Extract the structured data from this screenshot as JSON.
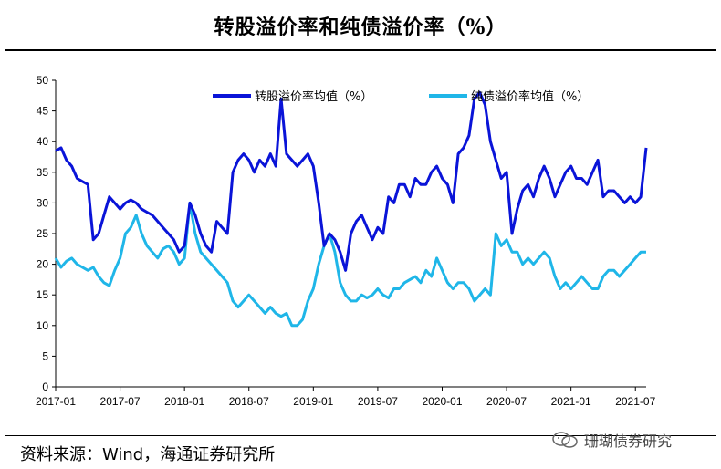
{
  "page_title": "转股溢价率和纯债溢价率（%）",
  "source_note": "资料来源：Wind，海通证券研究所",
  "watermark": "珊瑚债券研究",
  "colors": {
    "series_convert": "#0a14d8",
    "series_bond": "#1fb6e8",
    "axis": "#000000"
  },
  "chart_data": {
    "type": "line",
    "title": "转股溢价率和纯债溢价率（%）",
    "xlabel": "",
    "ylabel": "",
    "ylim": [
      0,
      50
    ],
    "yticks": [
      0,
      5,
      10,
      15,
      20,
      25,
      30,
      35,
      40,
      45,
      50
    ],
    "xlim": [
      0,
      55
    ],
    "xtick_positions": [
      0,
      6,
      12,
      18,
      24,
      30,
      36,
      42,
      48,
      54
    ],
    "xtick_labels": [
      "2017-01",
      "2017-07",
      "2018-01",
      "2018-07",
      "2019-01",
      "2019-07",
      "2020-01",
      "2020-07",
      "2021-01",
      "2021-07"
    ],
    "legend_position": "top",
    "series": [
      {
        "name": "转股溢价率均值（%）",
        "x": [
          0,
          0.5,
          1,
          1.5,
          2,
          2.5,
          3,
          3.5,
          4,
          4.5,
          5,
          5.5,
          6,
          6.5,
          7,
          7.5,
          8,
          8.5,
          9,
          9.5,
          10,
          10.5,
          11,
          11.5,
          12,
          12.5,
          13,
          13.5,
          14,
          14.5,
          15,
          15.5,
          16,
          16.5,
          17,
          17.5,
          18,
          18.5,
          19,
          19.5,
          20,
          20.5,
          21,
          21.5,
          22,
          22.5,
          23,
          23.5,
          24,
          24.5,
          25,
          25.5,
          26,
          26.5,
          27,
          27.5,
          28,
          28.5,
          29,
          29.5,
          30,
          30.5,
          31,
          31.5,
          32,
          32.5,
          33,
          33.5,
          34,
          34.5,
          35,
          35.5,
          36,
          36.5,
          37,
          37.5,
          38,
          38.5,
          39,
          39.5,
          40,
          40.5,
          41,
          41.5,
          42,
          42.5,
          43,
          43.5,
          44,
          44.5,
          45,
          45.5,
          46,
          46.5,
          47,
          47.5,
          48,
          48.5,
          49,
          49.5,
          50,
          50.5,
          51,
          51.5,
          52,
          52.5,
          53,
          53.5,
          54,
          54.5,
          55
        ],
        "values": [
          38.5,
          39,
          37,
          36,
          34,
          33.5,
          33,
          24,
          25,
          28,
          31,
          30,
          29,
          30,
          30.5,
          30,
          29,
          28.5,
          28,
          27,
          26,
          25,
          24,
          22,
          23,
          30,
          28,
          25,
          23,
          22,
          27,
          26,
          25,
          35,
          37,
          38,
          37,
          35,
          37,
          36,
          38,
          36,
          47,
          38,
          37,
          36,
          37,
          38,
          36,
          30,
          23,
          25,
          24,
          22,
          19,
          25,
          27,
          28,
          26,
          24,
          26,
          25,
          31,
          30,
          33,
          33,
          31,
          34,
          33,
          33,
          35,
          36,
          34,
          33,
          30,
          38,
          39,
          41,
          47,
          48,
          46,
          40,
          37,
          34,
          35,
          25,
          29,
          32,
          33,
          31,
          34,
          36,
          34,
          31,
          33,
          35,
          36,
          34,
          34,
          33,
          35,
          37,
          31,
          32,
          32,
          31,
          30,
          31,
          30,
          31,
          39
        ]
      },
      {
        "name": "纯债溢价率均值（%）",
        "x": [
          0,
          0.5,
          1,
          1.5,
          2,
          2.5,
          3,
          3.5,
          4,
          4.5,
          5,
          5.5,
          6,
          6.5,
          7,
          7.5,
          8,
          8.5,
          9,
          9.5,
          10,
          10.5,
          11,
          11.5,
          12,
          12.5,
          13,
          13.5,
          14,
          14.5,
          15,
          15.5,
          16,
          16.5,
          17,
          17.5,
          18,
          18.5,
          19,
          19.5,
          20,
          20.5,
          21,
          21.5,
          22,
          22.5,
          23,
          23.5,
          24,
          24.5,
          25,
          25.5,
          26,
          26.5,
          27,
          27.5,
          28,
          28.5,
          29,
          29.5,
          30,
          30.5,
          31,
          31.5,
          32,
          32.5,
          33,
          33.5,
          34,
          34.5,
          35,
          35.5,
          36,
          36.5,
          37,
          37.5,
          38,
          38.5,
          39,
          39.5,
          40,
          40.5,
          41,
          41.5,
          42,
          42.5,
          43,
          43.5,
          44,
          44.5,
          45,
          45.5,
          46,
          46.5,
          47,
          47.5,
          48,
          48.5,
          49,
          49.5,
          50,
          50.5,
          51,
          51.5,
          52,
          52.5,
          53,
          53.5,
          54,
          54.5,
          55
        ],
        "values": [
          21,
          19.5,
          20.5,
          21,
          20,
          19.5,
          19,
          19.5,
          18,
          17,
          16.5,
          19,
          21,
          25,
          26,
          28,
          25,
          23,
          22,
          21,
          22.5,
          23,
          22,
          20,
          21,
          30,
          25,
          22,
          21,
          20,
          19,
          18,
          17,
          14,
          13,
          14,
          15,
          14,
          13,
          12,
          13,
          12,
          11.5,
          12,
          10,
          10,
          11,
          14,
          16,
          20,
          23,
          25,
          22,
          17,
          15,
          14,
          14,
          15,
          14.5,
          15,
          16,
          15,
          14.5,
          16,
          16,
          17,
          17.5,
          18,
          17,
          19,
          18,
          21,
          19,
          17,
          16,
          17,
          17,
          16,
          14,
          15,
          16,
          15,
          25,
          23,
          24,
          22,
          22,
          20,
          21,
          20,
          21,
          22,
          21,
          18,
          16,
          17,
          16,
          17,
          18,
          17,
          16,
          16,
          18,
          19,
          19,
          18,
          19,
          20,
          21,
          22,
          22
        ]
      }
    ]
  }
}
